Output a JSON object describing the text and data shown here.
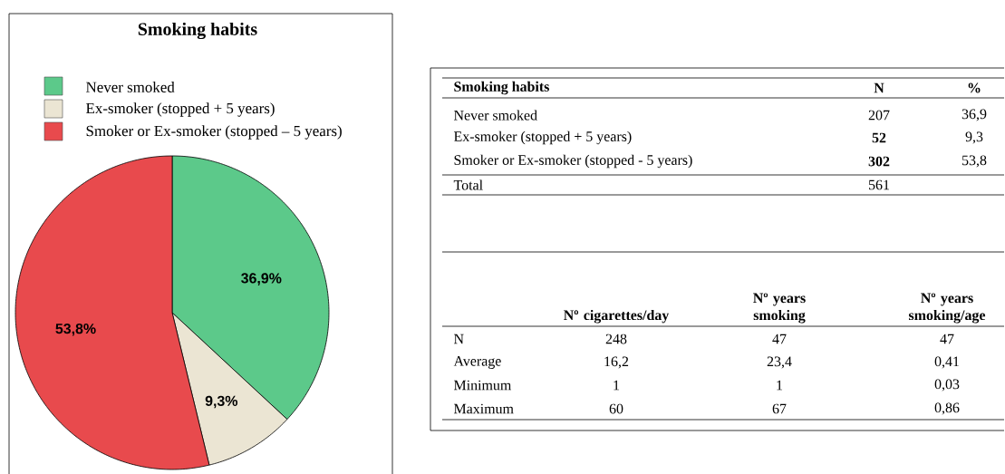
{
  "chart_data": [
    {
      "type": "pie",
      "title": "Smoking habits",
      "categories": [
        "Never smoked",
        "Ex-smoker (stopped + 5 years)",
        "Smoker or Ex-smoker (stopped – 5 years)"
      ],
      "values": [
        36.9,
        9.3,
        53.8
      ],
      "colors": [
        "#5cc98a",
        "#ebe5d3",
        "#e84a4d"
      ],
      "value_labels": [
        "36,9%",
        "9,3%",
        "53,8%"
      ],
      "legend": "top"
    },
    {
      "type": "other",
      "annotations": [
        "Smoking habits",
        "N",
        "%",
        "Never smoked",
        "207",
        "36,9",
        "Ex-smoker (stopped + 5 years)",
        "52",
        "9,3",
        "Smoker or Ex-smoker (stopped - 5 years)",
        "302",
        "53,8",
        "Total",
        "561"
      ]
    },
    {
      "type": "other",
      "annotations": [
        "Nº cigarettes/day",
        "Nº years smoking",
        "Nº years smoking/age",
        "N",
        "248",
        "47",
        "47",
        "Average",
        "16,2",
        "23,4",
        "0,41",
        "Minimum",
        "1",
        "1",
        "0,03",
        "Maximum",
        "60",
        "67",
        "0,86"
      ]
    }
  ]
}
